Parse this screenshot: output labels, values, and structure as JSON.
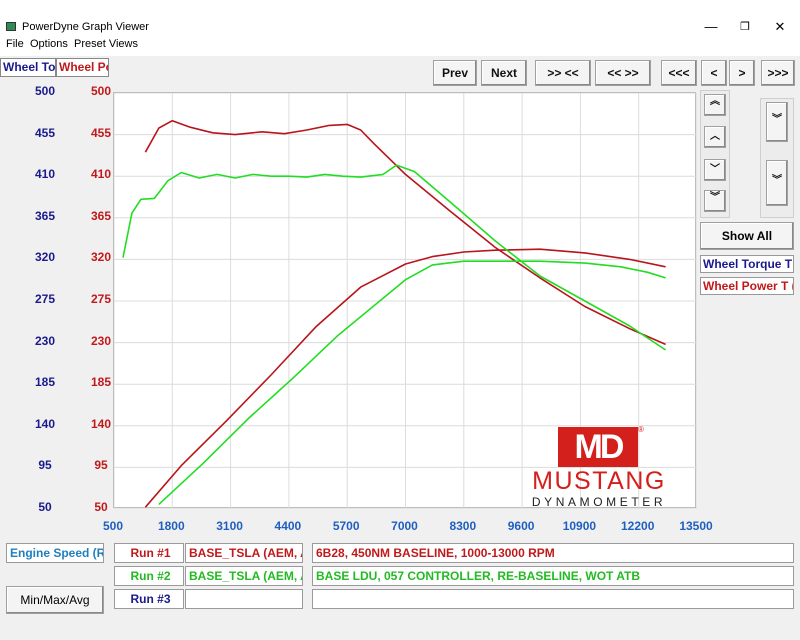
{
  "window": {
    "title": "PowerDyne Graph Viewer",
    "controls": {
      "minimize": "—",
      "maximize": "❐",
      "close": "✕"
    }
  },
  "menu": {
    "file": "File",
    "options": "Options",
    "preset_views": "Preset Views"
  },
  "tabs": {
    "wheel_torque": "Wheel To",
    "wheel_power": "Wheel Pc"
  },
  "nav": {
    "prev": "Prev",
    "next": "Next",
    "zoom_in": ">> <<",
    "zoom_out": "<< >>",
    "first": "<<<",
    "back": "<",
    "forward": ">",
    "last": ">>>"
  },
  "side_buttons": {
    "torque_up_fast": "︽",
    "torque_up": "︿",
    "torque_down": "﹀",
    "torque_down_fast": "︾",
    "power_scale_up": "︾",
    "power_scale_down": "︾"
  },
  "show_all": "Show All",
  "legend": {
    "wheel_torque": "Wheel Torque T",
    "wheel_power": "Wheel Power T ("
  },
  "bottom": {
    "x_channel": "Engine Speed (RI",
    "min_max_avg": "Min/Max/Avg",
    "runs": [
      {
        "label": "Run #1",
        "name": "BASE_TSLA (AEM, AEI",
        "description": "6B28, 450NM BASELINE, 1000-13000 RPM",
        "color": "#c0191b"
      },
      {
        "label": "Run #2",
        "name": "BASE_TSLA (AEM, AEI",
        "description": "BASE LDU, 057 CONTROLLER, RE-BASELINE, WOT ATB",
        "color": "#22cc22"
      },
      {
        "label": "Run #3",
        "name": "",
        "description": "",
        "color": "#1a1a8c"
      }
    ]
  },
  "logo": {
    "mark": "MD",
    "registered": "®",
    "brand": "MUSTANG",
    "tagline": "DYNAMOMETER"
  },
  "colors": {
    "torque_axis": "#1a1a8c",
    "power_axis": "#c0191b",
    "x_axis": "#1f5fbf",
    "run1": "#b8141a",
    "run2": "#22dd22",
    "grid": "#dcdcdc"
  },
  "chart_data": {
    "type": "line",
    "xlabel": "Engine Speed (RI",
    "x_ticks": [
      500,
      1800,
      3100,
      4400,
      5700,
      7000,
      8300,
      9600,
      10900,
      12200,
      13500
    ],
    "xlim": [
      500,
      13500
    ],
    "y_left_label": "Wheel To",
    "y_right_label": "Wheel Pc",
    "y_left_ticks": [
      50,
      95,
      140,
      185,
      230,
      275,
      320,
      365,
      410,
      455,
      500
    ],
    "y_right_ticks": [
      50,
      95,
      140,
      185,
      230,
      275,
      320,
      365,
      410,
      455,
      500
    ],
    "ylim": [
      50,
      500
    ],
    "grid": true,
    "series": [
      {
        "name": "BASE_TSLA (AEM, AEI",
        "quantity": "Wheel Torque",
        "color": "#b8141a",
        "x": [
          1200,
          1500,
          1800,
          2200,
          2700,
          3200,
          3800,
          4300,
          4800,
          5300,
          5700,
          6000,
          6300,
          7000,
          8000,
          9000,
          10000,
          11000,
          12000,
          12800
        ],
        "y": [
          436,
          462,
          470,
          463,
          457,
          455,
          458,
          456,
          460,
          465,
          466,
          460,
          445,
          412,
          372,
          333,
          300,
          269,
          245,
          228
        ]
      },
      {
        "name": "BASE_TSLA (AEM, AEI",
        "quantity": "Wheel Power",
        "color": "#b8141a",
        "x": [
          1200,
          2000,
          3000,
          4000,
          5000,
          6000,
          7000,
          7600,
          8300,
          9000,
          10000,
          11000,
          12000,
          12800
        ],
        "y": [
          52,
          97,
          145,
          195,
          247,
          290,
          315,
          323,
          328,
          330,
          331,
          327,
          320,
          312
        ]
      },
      {
        "name": "BASE_TSLA (AEM, AEI",
        "quantity": "Wheel Torque",
        "color": "#22dd22",
        "x": [
          700,
          900,
          1100,
          1400,
          1700,
          2000,
          2400,
          2800,
          3200,
          3600,
          4000,
          4400,
          4800,
          5200,
          5600,
          6000,
          6500,
          6800,
          7200,
          8000,
          9000,
          10000,
          11000,
          12000,
          12800
        ],
        "y": [
          322,
          370,
          385,
          386,
          405,
          414,
          408,
          412,
          408,
          412,
          410,
          410,
          409,
          412,
          410,
          409,
          412,
          422,
          415,
          382,
          340,
          302,
          275,
          248,
          222
        ]
      },
      {
        "name": "BASE_TSLA (AEM, AEI",
        "quantity": "Wheel Power",
        "color": "#22dd22",
        "x": [
          1500,
          2500,
          3500,
          4500,
          5500,
          6500,
          7000,
          7600,
          8300,
          9000,
          10000,
          11000,
          11800,
          12400,
          12800
        ],
        "y": [
          55,
          100,
          148,
          192,
          238,
          278,
          298,
          314,
          318,
          318,
          318,
          316,
          312,
          306,
          300
        ]
      }
    ]
  }
}
